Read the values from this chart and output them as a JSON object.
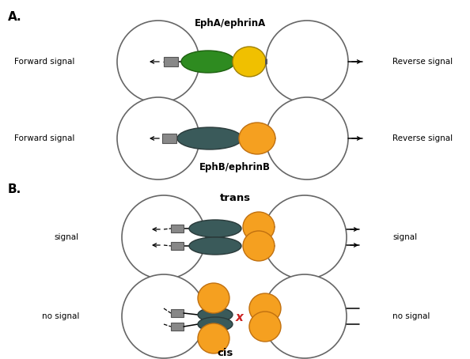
{
  "fig_width": 5.94,
  "fig_height": 4.54,
  "bg_color": "#ffffff",
  "panel_A_label": "A.",
  "panel_B_label": "B.",
  "ephA_label": "EphA/ephrinA",
  "ephB_label": "EphB/ephrinB",
  "trans_label": "trans",
  "cis_label": "cis",
  "forward_signal": "Forward signal",
  "reverse_signal": "Reverse signal",
  "signal_label": "signal",
  "no_signal_label": "no signal",
  "green_color": "#2e8b20",
  "yellow_color": "#f0c000",
  "dark_teal_color": "#3a5a5a",
  "orange_color": "#f5a020",
  "gray_color": "#888888",
  "red_x_color": "#cc2222",
  "cell_edge_color": "#666666"
}
